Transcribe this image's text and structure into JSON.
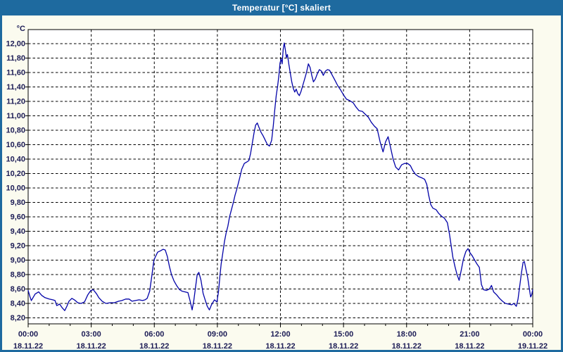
{
  "window": {
    "title": "Temperatur [°C] skaliert"
  },
  "colors": {
    "titlebar_bg": "#1E6A9F",
    "window_border": "#1E6A9F",
    "content_bg": "#FBFBEF",
    "plot_bg": "#FFFFFF",
    "grid": "#000000",
    "axis": "#000000",
    "label": "#1b1b55",
    "series_line": "#0202A8"
  },
  "chart_data": {
    "type": "line",
    "title": "Temperatur [°C] skaliert",
    "unit_label": "°C",
    "grid": "dashed",
    "legend": "none",
    "y_axis": {
      "min": 8.2,
      "max": 12.0,
      "step": 0.2,
      "labels": [
        "12,00",
        "11,80",
        "11,60",
        "11,40",
        "11,20",
        "11,00",
        "10,80",
        "10,60",
        "10,40",
        "10,20",
        "10,00",
        "9,80",
        "9,60",
        "9,40",
        "9,20",
        "9,00",
        "8,80",
        "8,60",
        "8,40",
        "8,20"
      ],
      "label_values": [
        12.0,
        11.8,
        11.6,
        11.4,
        11.2,
        11.0,
        10.8,
        10.6,
        10.4,
        10.2,
        10.0,
        9.8,
        9.6,
        9.4,
        9.2,
        9.0,
        8.8,
        8.6,
        8.4,
        8.2
      ]
    },
    "x_axis": {
      "hours_span": 24,
      "major_tick_hours": 3,
      "minor_tick_hours": 1,
      "ticks": [
        {
          "hour": 0,
          "time": "00:00",
          "date": "18.11.22"
        },
        {
          "hour": 3,
          "time": "03:00",
          "date": "18.11.22"
        },
        {
          "hour": 6,
          "time": "06:00",
          "date": "18.11.22"
        },
        {
          "hour": 9,
          "time": "09:00",
          "date": "18.11.22"
        },
        {
          "hour": 12,
          "time": "12:00",
          "date": "18.11.22"
        },
        {
          "hour": 15,
          "time": "15:00",
          "date": "18.11.22"
        },
        {
          "hour": 18,
          "time": "18:00",
          "date": "18.11.22"
        },
        {
          "hour": 21,
          "time": "21:00",
          "date": "18.11.22"
        },
        {
          "hour": 24,
          "time": "00:00",
          "date": "19.11.22"
        }
      ]
    },
    "series": [
      {
        "name": "Temperatur",
        "color": "#0202A8",
        "points": [
          [
            0.0,
            8.58
          ],
          [
            0.08,
            8.5
          ],
          [
            0.15,
            8.44
          ],
          [
            0.25,
            8.49
          ],
          [
            0.33,
            8.53
          ],
          [
            0.5,
            8.56
          ],
          [
            0.65,
            8.51
          ],
          [
            0.8,
            8.48
          ],
          [
            1.0,
            8.46
          ],
          [
            1.17,
            8.45
          ],
          [
            1.28,
            8.44
          ],
          [
            1.36,
            8.37
          ],
          [
            1.5,
            8.39
          ],
          [
            1.62,
            8.34
          ],
          [
            1.74,
            8.3
          ],
          [
            1.84,
            8.36
          ],
          [
            1.94,
            8.43
          ],
          [
            2.08,
            8.47
          ],
          [
            2.2,
            8.45
          ],
          [
            2.36,
            8.41
          ],
          [
            2.52,
            8.4
          ],
          [
            2.68,
            8.42
          ],
          [
            2.84,
            8.52
          ],
          [
            2.98,
            8.58
          ],
          [
            3.1,
            8.59
          ],
          [
            3.26,
            8.53
          ],
          [
            3.36,
            8.48
          ],
          [
            3.52,
            8.43
          ],
          [
            3.7,
            8.4
          ],
          [
            3.9,
            8.41
          ],
          [
            4.1,
            8.41
          ],
          [
            4.3,
            8.43
          ],
          [
            4.46,
            8.44
          ],
          [
            4.64,
            8.46
          ],
          [
            4.8,
            8.46
          ],
          [
            4.94,
            8.43
          ],
          [
            5.1,
            8.44
          ],
          [
            5.28,
            8.45
          ],
          [
            5.44,
            8.44
          ],
          [
            5.56,
            8.45
          ],
          [
            5.66,
            8.47
          ],
          [
            5.78,
            8.57
          ],
          [
            5.88,
            8.78
          ],
          [
            5.98,
            9.0
          ],
          [
            6.06,
            9.05
          ],
          [
            6.16,
            9.11
          ],
          [
            6.3,
            9.13
          ],
          [
            6.42,
            9.15
          ],
          [
            6.52,
            9.14
          ],
          [
            6.62,
            9.05
          ],
          [
            6.72,
            8.91
          ],
          [
            6.82,
            8.8
          ],
          [
            6.94,
            8.71
          ],
          [
            7.08,
            8.64
          ],
          [
            7.2,
            8.59
          ],
          [
            7.32,
            8.57
          ],
          [
            7.46,
            8.56
          ],
          [
            7.6,
            8.55
          ],
          [
            7.7,
            8.44
          ],
          [
            7.8,
            8.31
          ],
          [
            7.88,
            8.44
          ],
          [
            7.96,
            8.62
          ],
          [
            8.04,
            8.8
          ],
          [
            8.12,
            8.83
          ],
          [
            8.22,
            8.72
          ],
          [
            8.32,
            8.54
          ],
          [
            8.42,
            8.45
          ],
          [
            8.52,
            8.36
          ],
          [
            8.62,
            8.31
          ],
          [
            8.72,
            8.38
          ],
          [
            8.86,
            8.45
          ],
          [
            8.98,
            8.42
          ],
          [
            9.06,
            8.58
          ],
          [
            9.12,
            8.78
          ],
          [
            9.18,
            8.95
          ],
          [
            9.26,
            9.1
          ],
          [
            9.34,
            9.26
          ],
          [
            9.42,
            9.38
          ],
          [
            9.5,
            9.47
          ],
          [
            9.58,
            9.6
          ],
          [
            9.66,
            9.69
          ],
          [
            9.76,
            9.8
          ],
          [
            9.84,
            9.9
          ],
          [
            9.92,
            9.98
          ],
          [
            10.0,
            10.07
          ],
          [
            10.08,
            10.16
          ],
          [
            10.16,
            10.26
          ],
          [
            10.28,
            10.34
          ],
          [
            10.4,
            10.36
          ],
          [
            10.5,
            10.38
          ],
          [
            10.58,
            10.48
          ],
          [
            10.66,
            10.62
          ],
          [
            10.74,
            10.76
          ],
          [
            10.82,
            10.87
          ],
          [
            10.9,
            10.9
          ],
          [
            10.98,
            10.84
          ],
          [
            11.08,
            10.77
          ],
          [
            11.18,
            10.72
          ],
          [
            11.28,
            10.66
          ],
          [
            11.38,
            10.6
          ],
          [
            11.48,
            10.58
          ],
          [
            11.58,
            10.66
          ],
          [
            11.66,
            10.86
          ],
          [
            11.73,
            11.08
          ],
          [
            11.8,
            11.28
          ],
          [
            11.87,
            11.42
          ],
          [
            11.93,
            11.57
          ],
          [
            11.98,
            11.73
          ],
          [
            12.03,
            11.79
          ],
          [
            12.08,
            11.72
          ],
          [
            12.13,
            11.92
          ],
          [
            12.18,
            12.01
          ],
          [
            12.23,
            11.92
          ],
          [
            12.28,
            11.81
          ],
          [
            12.33,
            11.85
          ],
          [
            12.4,
            11.71
          ],
          [
            12.47,
            11.59
          ],
          [
            12.54,
            11.47
          ],
          [
            12.61,
            11.38
          ],
          [
            12.68,
            11.33
          ],
          [
            12.75,
            11.37
          ],
          [
            12.82,
            11.31
          ],
          [
            12.9,
            11.28
          ],
          [
            12.98,
            11.34
          ],
          [
            13.06,
            11.42
          ],
          [
            13.15,
            11.51
          ],
          [
            13.24,
            11.6
          ],
          [
            13.33,
            11.72
          ],
          [
            13.41,
            11.67
          ],
          [
            13.49,
            11.56
          ],
          [
            13.57,
            11.47
          ],
          [
            13.66,
            11.51
          ],
          [
            13.75,
            11.58
          ],
          [
            13.85,
            11.64
          ],
          [
            13.95,
            11.62
          ],
          [
            14.04,
            11.56
          ],
          [
            14.14,
            11.62
          ],
          [
            14.24,
            11.64
          ],
          [
            14.34,
            11.63
          ],
          [
            14.45,
            11.57
          ],
          [
            14.58,
            11.5
          ],
          [
            14.72,
            11.42
          ],
          [
            14.86,
            11.36
          ],
          [
            15.0,
            11.29
          ],
          [
            15.14,
            11.23
          ],
          [
            15.3,
            11.21
          ],
          [
            15.46,
            11.18
          ],
          [
            15.6,
            11.12
          ],
          [
            15.74,
            11.07
          ],
          [
            15.9,
            11.06
          ],
          [
            16.04,
            11.02
          ],
          [
            16.18,
            10.98
          ],
          [
            16.32,
            10.91
          ],
          [
            16.46,
            10.86
          ],
          [
            16.6,
            10.82
          ],
          [
            16.74,
            10.64
          ],
          [
            16.88,
            10.5
          ],
          [
            17.0,
            10.64
          ],
          [
            17.12,
            10.71
          ],
          [
            17.24,
            10.56
          ],
          [
            17.36,
            10.4
          ],
          [
            17.48,
            10.29
          ],
          [
            17.62,
            10.25
          ],
          [
            17.76,
            10.32
          ],
          [
            17.9,
            10.34
          ],
          [
            18.05,
            10.34
          ],
          [
            18.18,
            10.31
          ],
          [
            18.3,
            10.24
          ],
          [
            18.42,
            10.19
          ],
          [
            18.56,
            10.16
          ],
          [
            18.72,
            10.14
          ],
          [
            18.86,
            10.12
          ],
          [
            18.96,
            10.05
          ],
          [
            19.05,
            9.9
          ],
          [
            19.15,
            9.77
          ],
          [
            19.25,
            9.72
          ],
          [
            19.4,
            9.7
          ],
          [
            19.52,
            9.65
          ],
          [
            19.66,
            9.61
          ],
          [
            19.8,
            9.58
          ],
          [
            19.94,
            9.52
          ],
          [
            20.04,
            9.36
          ],
          [
            20.12,
            9.2
          ],
          [
            20.2,
            9.04
          ],
          [
            20.3,
            8.91
          ],
          [
            20.4,
            8.8
          ],
          [
            20.5,
            8.72
          ],
          [
            20.6,
            8.86
          ],
          [
            20.7,
            9.01
          ],
          [
            20.82,
            9.12
          ],
          [
            20.92,
            9.16
          ],
          [
            21.02,
            9.1
          ],
          [
            21.12,
            9.06
          ],
          [
            21.22,
            9.01
          ],
          [
            21.34,
            8.95
          ],
          [
            21.46,
            8.9
          ],
          [
            21.56,
            8.66
          ],
          [
            21.66,
            8.59
          ],
          [
            21.8,
            8.58
          ],
          [
            21.94,
            8.6
          ],
          [
            22.04,
            8.65
          ],
          [
            22.14,
            8.56
          ],
          [
            22.28,
            8.52
          ],
          [
            22.42,
            8.47
          ],
          [
            22.56,
            8.43
          ],
          [
            22.7,
            8.4
          ],
          [
            22.86,
            8.39
          ],
          [
            23.0,
            8.38
          ],
          [
            23.1,
            8.4
          ],
          [
            23.22,
            8.36
          ],
          [
            23.3,
            8.46
          ],
          [
            23.38,
            8.64
          ],
          [
            23.46,
            8.82
          ],
          [
            23.54,
            8.97
          ],
          [
            23.6,
            8.98
          ],
          [
            23.68,
            8.87
          ],
          [
            23.76,
            8.76
          ],
          [
            23.84,
            8.6
          ],
          [
            23.9,
            8.49
          ],
          [
            23.95,
            8.52
          ],
          [
            24.0,
            8.59
          ]
        ]
      }
    ]
  }
}
